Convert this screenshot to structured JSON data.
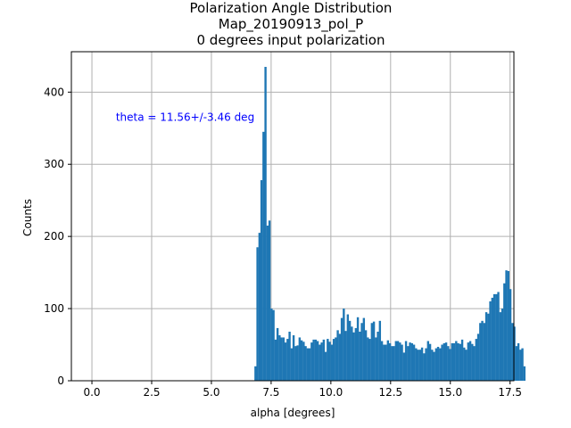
{
  "chart_data": {
    "type": "bar",
    "title_lines": [
      "Polarization Angle Distribution",
      "Map_20190913_pol_P",
      "0 degrees input polarization"
    ],
    "xlabel": "alpha [degrees]",
    "ylabel": "Counts",
    "xlim": [
      -0.86,
      17.66
    ],
    "ylim": [
      0,
      456
    ],
    "xticks": [
      0.0,
      2.5,
      5.0,
      7.5,
      10.0,
      12.5,
      15.0,
      17.5
    ],
    "xtick_labels": [
      "0.0",
      "2.5",
      "5.0",
      "7.5",
      "10.0",
      "12.5",
      "15.0",
      "17.5"
    ],
    "yticks": [
      0,
      100,
      200,
      300,
      400
    ],
    "ytick_labels": [
      "0",
      "100",
      "200",
      "300",
      "400"
    ],
    "grid": true,
    "bar_color": "#1f77b4",
    "annotation": {
      "text": "theta = 11.56+/-3.46 deg",
      "x": 1.0,
      "y": 365,
      "color": "#0000ff"
    },
    "bin_width": 0.084,
    "bin_start": 6.8,
    "counts": [
      20,
      185,
      205,
      278,
      345,
      435,
      215,
      222,
      100,
      98,
      57,
      73,
      63,
      60,
      60,
      53,
      58,
      68,
      45,
      63,
      48,
      49,
      60,
      56,
      54,
      48,
      45,
      45,
      53,
      57,
      57,
      55,
      50,
      53,
      57,
      40,
      58,
      54,
      50,
      58,
      60,
      70,
      65,
      87,
      100,
      69,
      92,
      83,
      75,
      67,
      73,
      88,
      68,
      80,
      87,
      70,
      60,
      58,
      80,
      82,
      60,
      68,
      83,
      55,
      50,
      50,
      56,
      52,
      48,
      48,
      55,
      55,
      53,
      50,
      39,
      55,
      48,
      53,
      52,
      50,
      45,
      43,
      43,
      46,
      38,
      45,
      55,
      51,
      43,
      40,
      45,
      47,
      45,
      50,
      52,
      53,
      48,
      44,
      52,
      52,
      55,
      52,
      51,
      57,
      46,
      43,
      53,
      55,
      51,
      48,
      58,
      65,
      80,
      83,
      80,
      95,
      93,
      110,
      115,
      120,
      120,
      123,
      95,
      100,
      135,
      153,
      152,
      127,
      80,
      75,
      48,
      52,
      43,
      45,
      20
    ]
  }
}
